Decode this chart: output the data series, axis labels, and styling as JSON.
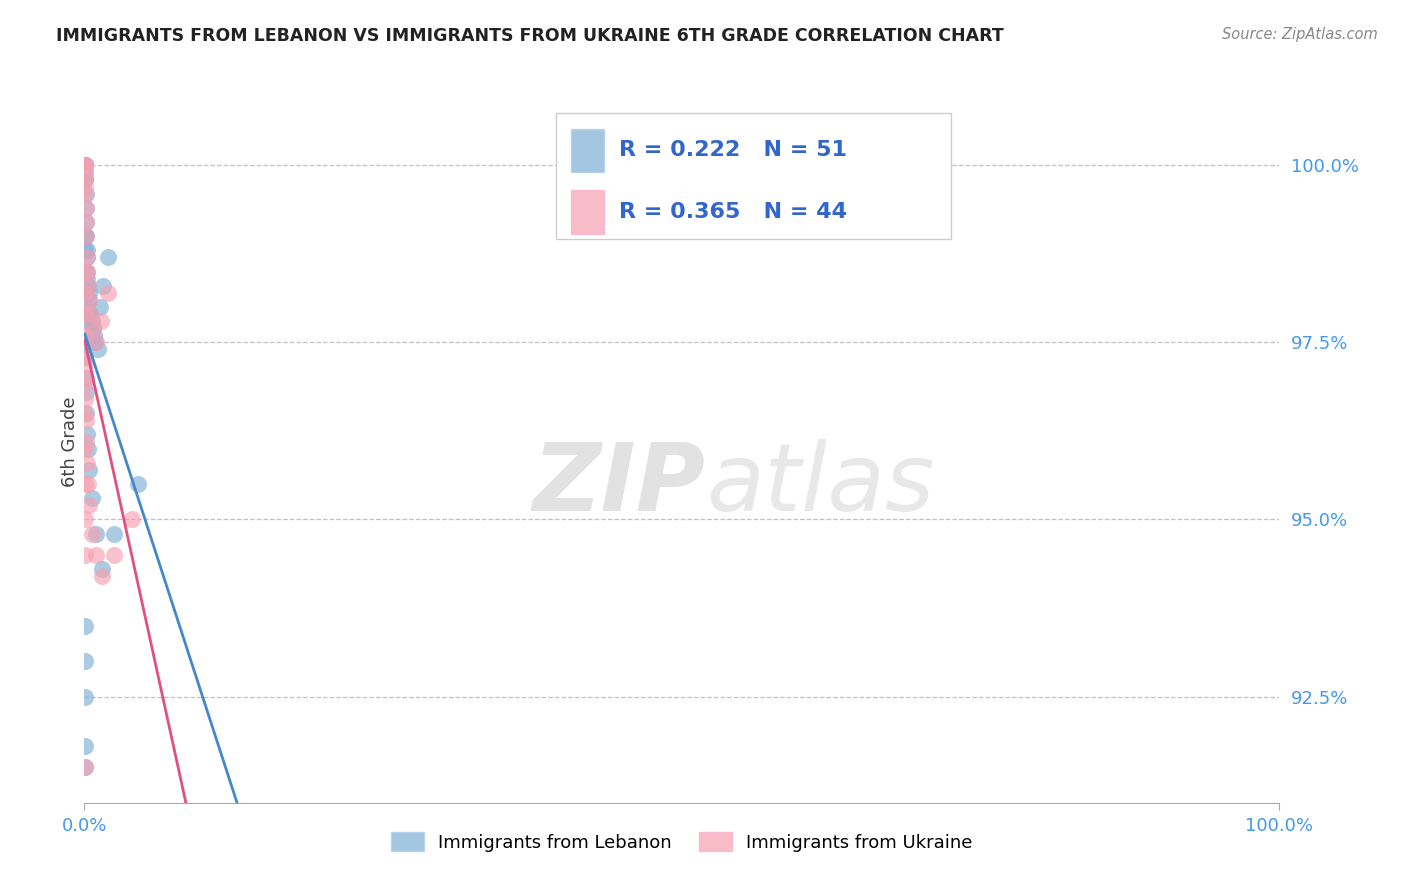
{
  "title": "IMMIGRANTS FROM LEBANON VS IMMIGRANTS FROM UKRAINE 6TH GRADE CORRELATION CHART",
  "source": "Source: ZipAtlas.com",
  "ylabel": "6th Grade",
  "ytick_values": [
    92.5,
    95.0,
    97.5,
    100.0
  ],
  "ymin": 91.0,
  "ymax": 101.2,
  "xmin": 0.0,
  "xmax": 100.0,
  "legend_label_1": "Immigrants from Lebanon",
  "legend_label_2": "Immigrants from Ukraine",
  "R_lebanon": 0.222,
  "N_lebanon": 51,
  "R_ukraine": 0.365,
  "N_ukraine": 44,
  "color_lebanon": "#7EB0D5",
  "color_ukraine": "#F5A0B0",
  "trendline_color_lebanon": "#4488CC",
  "trendline_color_ukraine": "#E05080",
  "watermark_zip": "ZIP",
  "watermark_atlas": "atlas",
  "lebanon_x": [
    0.05,
    0.05,
    0.05,
    0.05,
    0.05,
    0.05,
    0.05,
    0.1,
    0.1,
    0.15,
    0.15,
    0.2,
    0.2,
    0.2,
    0.25,
    0.3,
    0.35,
    0.4,
    0.5,
    0.6,
    0.7,
    0.8,
    0.9,
    1.1,
    1.3,
    1.6,
    2.0,
    0.05,
    0.05,
    0.05,
    0.05,
    0.05,
    0.05,
    0.05,
    0.05,
    0.1,
    0.1,
    0.15,
    0.2,
    0.3,
    0.4,
    0.6,
    1.0,
    1.5,
    2.5,
    4.5,
    0.05,
    0.05,
    0.05,
    0.05,
    0.05
  ],
  "lebanon_y": [
    100.0,
    100.0,
    100.0,
    100.0,
    99.9,
    99.8,
    99.8,
    99.6,
    99.4,
    99.2,
    99.0,
    98.8,
    98.7,
    98.5,
    98.4,
    98.3,
    98.2,
    98.1,
    97.9,
    97.8,
    97.7,
    97.6,
    97.5,
    97.4,
    98.0,
    98.3,
    98.7,
    99.0,
    98.8,
    98.5,
    98.2,
    98.0,
    97.8,
    97.5,
    97.3,
    97.0,
    96.8,
    96.5,
    96.2,
    96.0,
    95.7,
    95.3,
    94.8,
    94.3,
    94.8,
    95.5,
    93.5,
    93.0,
    92.5,
    91.8,
    91.5
  ],
  "ukraine_x": [
    0.05,
    0.05,
    0.05,
    0.05,
    0.05,
    0.05,
    0.05,
    0.1,
    0.1,
    0.15,
    0.2,
    0.25,
    0.3,
    0.4,
    0.5,
    0.7,
    1.0,
    1.4,
    2.0,
    0.05,
    0.05,
    0.05,
    0.05,
    0.05,
    0.05,
    0.05,
    0.1,
    0.15,
    0.2,
    0.3,
    0.4,
    0.6,
    1.0,
    1.5,
    2.5,
    4.0,
    0.05,
    0.05,
    0.05,
    0.05,
    0.05,
    0.05,
    0.05,
    0.05
  ],
  "ukraine_y": [
    100.0,
    100.0,
    100.0,
    99.9,
    99.8,
    99.7,
    99.6,
    99.4,
    99.2,
    99.0,
    98.7,
    98.5,
    98.3,
    98.1,
    97.9,
    97.7,
    97.5,
    97.8,
    98.2,
    98.5,
    98.2,
    97.9,
    97.6,
    97.3,
    97.0,
    96.7,
    96.4,
    96.1,
    95.8,
    95.5,
    95.2,
    94.8,
    94.5,
    94.2,
    94.5,
    95.0,
    97.2,
    96.9,
    96.5,
    96.0,
    95.5,
    95.0,
    94.5,
    91.5
  ]
}
